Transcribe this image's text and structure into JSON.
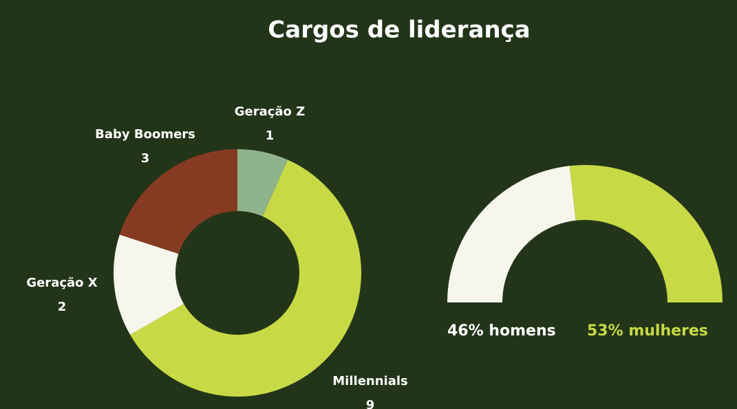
{
  "title": "Cargos de liderança",
  "chart_data": [
    {
      "type": "donut",
      "categories": [
        "Geração Z",
        "Millennials",
        "Geração X",
        "Baby Boomers"
      ],
      "values": [
        1,
        9,
        2,
        3
      ],
      "colors": [
        "#8fb38a",
        "#c8d946",
        "#f7f6ec",
        "#873a22"
      ]
    },
    {
      "type": "half-donut",
      "values": [
        46,
        53
      ],
      "value_labels": [
        "46% homens",
        "53% mulheres"
      ],
      "colors": [
        "#f7f6ec",
        "#c8d946"
      ]
    }
  ]
}
